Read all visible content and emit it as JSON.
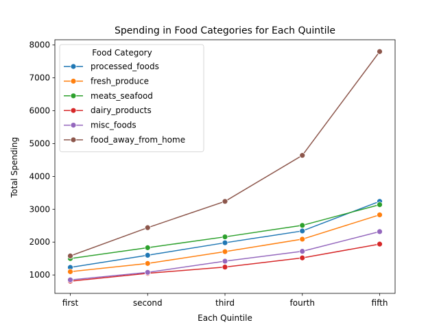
{
  "chart_data": {
    "type": "line",
    "title": "Spending in Food Categories for Each Quintile",
    "xlabel": "Each Quintile",
    "ylabel": "Total Spending",
    "categories": [
      "first",
      "second",
      "third",
      "fourth",
      "fifth"
    ],
    "ylim": [
      440,
      8160
    ],
    "yticks": [
      1000,
      2000,
      3000,
      4000,
      5000,
      6000,
      7000,
      8000
    ],
    "grid": false,
    "legend": {
      "title": "Food Category",
      "placement": "top-left"
    },
    "series": [
      {
        "name": "processed_foods",
        "color": "#1f77b4",
        "values": [
          1230,
          1600,
          1980,
          2340,
          3240
        ]
      },
      {
        "name": "fresh_produce",
        "color": "#ff7f0e",
        "values": [
          1100,
          1350,
          1710,
          2090,
          2830
        ]
      },
      {
        "name": "meats_seafood",
        "color": "#2ca02c",
        "values": [
          1500,
          1830,
          2160,
          2510,
          3140
        ]
      },
      {
        "name": "dairy_products",
        "color": "#d62728",
        "values": [
          810,
          1050,
          1240,
          1520,
          1940
        ]
      },
      {
        "name": "misc_foods",
        "color": "#9467bd",
        "values": [
          850,
          1080,
          1420,
          1720,
          2320
        ]
      },
      {
        "name": "food_away_from_home",
        "color": "#8c564b",
        "values": [
          1580,
          2440,
          3240,
          4640,
          7800
        ]
      }
    ]
  }
}
